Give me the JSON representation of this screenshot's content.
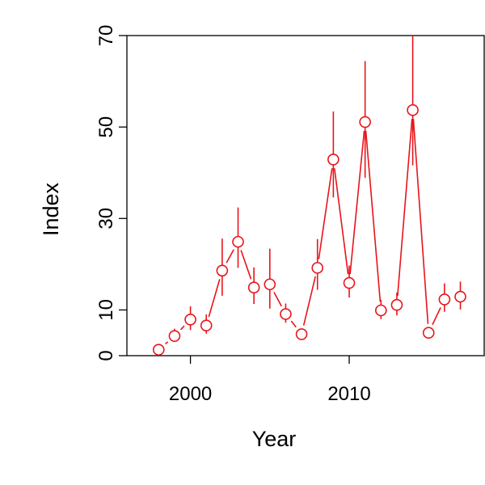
{
  "chart_data": {
    "type": "scatter",
    "title": "",
    "xlabel": "Year",
    "ylabel": "Index",
    "xlim": [
      1996,
      2018.5
    ],
    "ylim": [
      0,
      70
    ],
    "x_ticks": [
      2000,
      2010
    ],
    "y_ticks": [
      0,
      10,
      30,
      50,
      70
    ],
    "x_tick_labels": [
      "2000",
      "2010"
    ],
    "y_tick_labels": [
      "0",
      "10",
      "30",
      "50",
      "70"
    ],
    "grid": false,
    "legend": "none",
    "colors": {
      "series": "#e8141b",
      "axis": "#000000"
    },
    "series": [
      {
        "x": [
          1998,
          1999,
          2000,
          2001,
          2002,
          2003,
          2004,
          2005,
          2006,
          2007,
          2008,
          2009,
          2010,
          2011,
          2012,
          2013,
          2014,
          2015,
          2016,
          2017
        ],
        "y": [
          1.3,
          4.3,
          7.9,
          6.6,
          18.6,
          24.9,
          14.9,
          15.6,
          9.1,
          4.7,
          19.2,
          42.9,
          15.9,
          51.1,
          9.9,
          11.1,
          53.7,
          5.0,
          12.3,
          12.9
        ],
        "lower": [
          0.6,
          3.2,
          5.6,
          4.8,
          13.1,
          19.2,
          11.3,
          10.3,
          7.2,
          3.7,
          14.4,
          34.6,
          12.7,
          38.9,
          8.0,
          8.8,
          41.6,
          4.0,
          9.6,
          10.1
        ],
        "upper": [
          2.4,
          5.9,
          10.8,
          9.0,
          25.6,
          32.4,
          19.3,
          23.4,
          11.4,
          5.9,
          25.5,
          53.4,
          19.7,
          64.4,
          12.2,
          13.8,
          70.0,
          6.2,
          15.8,
          16.2
        ]
      }
    ]
  }
}
